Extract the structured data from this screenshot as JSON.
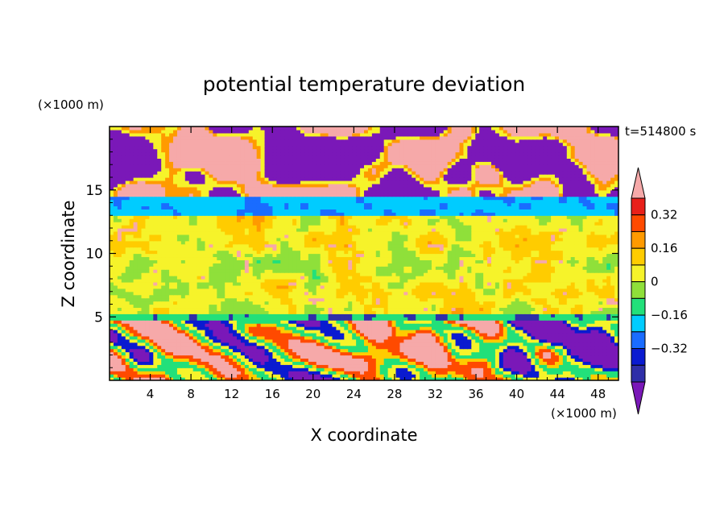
{
  "chart_data": {
    "type": "heatmap",
    "title": "potential temperature deviation",
    "xlabel": "X coordinate",
    "ylabel": "Z coordinate",
    "x_unit": "(×1000 m)",
    "y_unit": "(×1000 m)",
    "time_label": "t=514800 s",
    "xlim": [
      0,
      50
    ],
    "ylim": [
      0,
      20
    ],
    "x_ticks": [
      4,
      8,
      12,
      16,
      20,
      24,
      28,
      32,
      36,
      40,
      44,
      48
    ],
    "y_ticks": [
      5,
      10,
      15
    ],
    "colorbar": {
      "levels": [
        -0.48,
        -0.4,
        -0.32,
        -0.24,
        -0.16,
        -0.08,
        0,
        0.08,
        0.16,
        0.24,
        0.32,
        0.4
      ],
      "labels": [
        0.32,
        0.16,
        0,
        -0.16,
        -0.32
      ],
      "colors": [
        "#7a18b8",
        "#2f2fa8",
        "#0a1bd0",
        "#1a6cff",
        "#00ccff",
        "#22e07a",
        "#8fe03a",
        "#f6f32a",
        "#ffcc00",
        "#ff9a00",
        "#ff4a00",
        "#e8201a",
        "#f6a9a9"
      ],
      "extend": "both"
    },
    "bands": [
      {
        "z_min": 0,
        "z_max": 4.8,
        "dominant": "mixed"
      },
      {
        "z_min": 4.8,
        "z_max": 5.3,
        "dominant": -0.16
      },
      {
        "z_min": 5.3,
        "z_max": 13.0,
        "dominant": 0.04
      },
      {
        "z_min": 13.0,
        "z_max": 14.5,
        "dominant": -0.2
      },
      {
        "z_min": 14.5,
        "z_max": 19.8,
        "dominant": "mixed"
      }
    ]
  }
}
